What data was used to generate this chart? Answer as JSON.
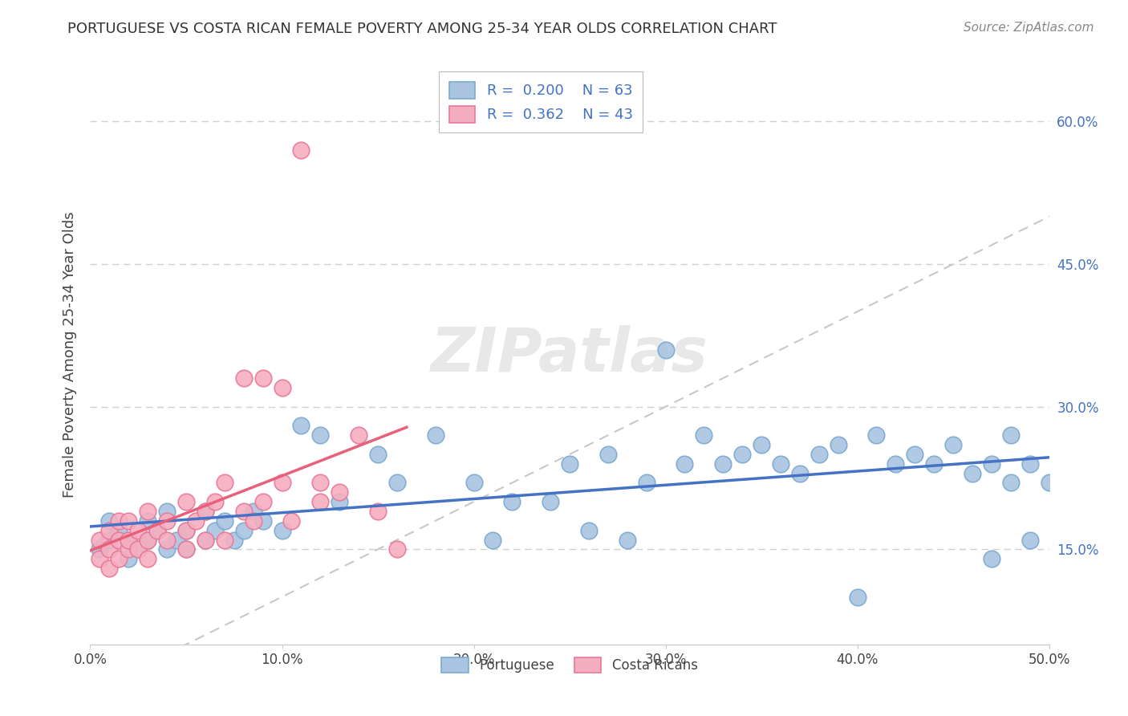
{
  "title": "PORTUGUESE VS COSTA RICAN FEMALE POVERTY AMONG 25-34 YEAR OLDS CORRELATION CHART",
  "source": "Source: ZipAtlas.com",
  "ylabel": "Female Poverty Among 25-34 Year Olds",
  "xlim": [
    0.0,
    0.5
  ],
  "ylim": [
    0.05,
    0.66
  ],
  "xticks": [
    0.0,
    0.1,
    0.2,
    0.3,
    0.4,
    0.5
  ],
  "xtick_labels": [
    "0.0%",
    "10.0%",
    "20.0%",
    "30.0%",
    "40.0%",
    "50.0%"
  ],
  "yticks": [
    0.15,
    0.3,
    0.45,
    0.6
  ],
  "ytick_labels": [
    "15.0%",
    "30.0%",
    "45.0%",
    "60.0%"
  ],
  "portuguese_color": "#aac4e2",
  "costarica_color": "#f5aec0",
  "portuguese_edge": "#7aaad0",
  "costarica_edge": "#e87898",
  "trend_blue": "#4472c4",
  "trend_pink": "#e8607a",
  "diag_color": "#c8c8c8",
  "background_color": "#ffffff",
  "grid_color": "#d0d0d0",
  "watermark_color": "#e8e8e8",
  "portuguese_x": [
    0.005,
    0.01,
    0.01,
    0.015,
    0.02,
    0.02,
    0.025,
    0.03,
    0.03,
    0.035,
    0.04,
    0.04,
    0.045,
    0.05,
    0.05,
    0.06,
    0.06,
    0.065,
    0.07,
    0.075,
    0.08,
    0.085,
    0.09,
    0.1,
    0.11,
    0.12,
    0.13,
    0.15,
    0.16,
    0.18,
    0.2,
    0.21,
    0.22,
    0.24,
    0.25,
    0.26,
    0.27,
    0.28,
    0.29,
    0.3,
    0.31,
    0.32,
    0.33,
    0.34,
    0.35,
    0.36,
    0.37,
    0.38,
    0.39,
    0.4,
    0.41,
    0.42,
    0.43,
    0.44,
    0.45,
    0.46,
    0.47,
    0.47,
    0.48,
    0.48,
    0.49,
    0.49,
    0.5
  ],
  "portuguese_y": [
    0.15,
    0.16,
    0.18,
    0.17,
    0.14,
    0.16,
    0.15,
    0.16,
    0.18,
    0.17,
    0.15,
    0.19,
    0.16,
    0.15,
    0.17,
    0.16,
    0.19,
    0.17,
    0.18,
    0.16,
    0.17,
    0.19,
    0.18,
    0.17,
    0.28,
    0.27,
    0.2,
    0.25,
    0.22,
    0.27,
    0.22,
    0.16,
    0.2,
    0.2,
    0.24,
    0.17,
    0.25,
    0.16,
    0.22,
    0.36,
    0.24,
    0.27,
    0.24,
    0.25,
    0.26,
    0.24,
    0.23,
    0.25,
    0.26,
    0.1,
    0.27,
    0.24,
    0.25,
    0.24,
    0.26,
    0.23,
    0.14,
    0.24,
    0.22,
    0.27,
    0.16,
    0.24,
    0.22
  ],
  "costarica_x": [
    0.005,
    0.005,
    0.01,
    0.01,
    0.01,
    0.015,
    0.015,
    0.015,
    0.02,
    0.02,
    0.02,
    0.025,
    0.025,
    0.03,
    0.03,
    0.03,
    0.035,
    0.04,
    0.04,
    0.05,
    0.05,
    0.05,
    0.055,
    0.06,
    0.06,
    0.065,
    0.07,
    0.07,
    0.08,
    0.08,
    0.085,
    0.09,
    0.09,
    0.1,
    0.1,
    0.105,
    0.11,
    0.12,
    0.12,
    0.13,
    0.14,
    0.15,
    0.16
  ],
  "costarica_y": [
    0.14,
    0.16,
    0.13,
    0.15,
    0.17,
    0.14,
    0.16,
    0.18,
    0.15,
    0.16,
    0.18,
    0.15,
    0.17,
    0.14,
    0.16,
    0.19,
    0.17,
    0.16,
    0.18,
    0.15,
    0.17,
    0.2,
    0.18,
    0.16,
    0.19,
    0.2,
    0.16,
    0.22,
    0.19,
    0.33,
    0.18,
    0.2,
    0.33,
    0.22,
    0.32,
    0.18,
    0.57,
    0.2,
    0.22,
    0.21,
    0.27,
    0.19,
    0.15
  ]
}
